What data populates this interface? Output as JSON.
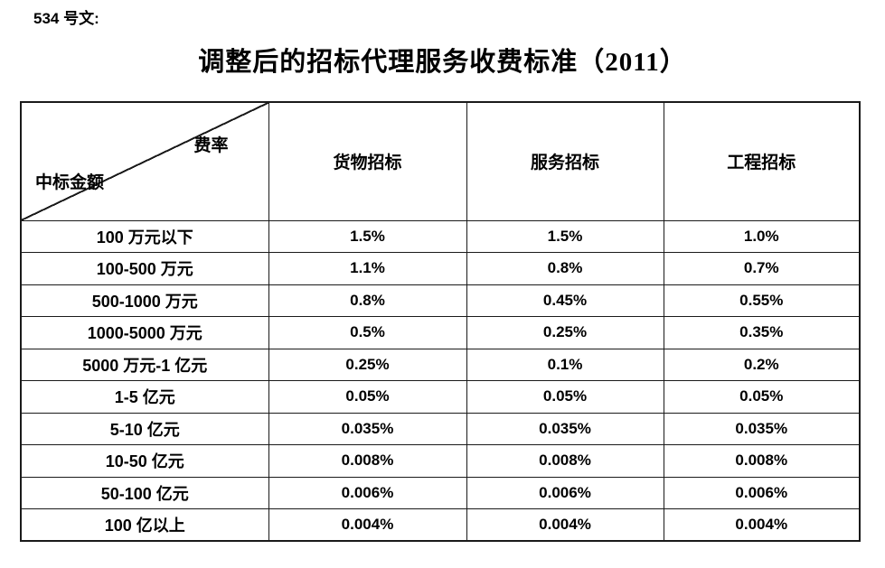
{
  "doc_ref": "534 号文:",
  "title": "调整后的招标代理服务收费标准（2011）",
  "table": {
    "corner": {
      "top_right": "费率",
      "bottom_left": "中标金额"
    },
    "columns": [
      "货物招标",
      "服务招标",
      "工程招标"
    ],
    "rows": [
      {
        "label": "100 万元以下",
        "values": [
          "1.5%",
          "1.5%",
          "1.0%"
        ]
      },
      {
        "label": "100-500 万元",
        "values": [
          "1.1%",
          "0.8%",
          "0.7%"
        ]
      },
      {
        "label": "500-1000 万元",
        "values": [
          "0.8%",
          "0.45%",
          "0.55%"
        ]
      },
      {
        "label": "1000-5000 万元",
        "values": [
          "0.5%",
          "0.25%",
          "0.35%"
        ]
      },
      {
        "label": "5000 万元-1 亿元",
        "values": [
          "0.25%",
          "0.1%",
          "0.2%"
        ]
      },
      {
        "label": "1-5 亿元",
        "values": [
          "0.05%",
          "0.05%",
          "0.05%"
        ]
      },
      {
        "label": "5-10 亿元",
        "values": [
          "0.035%",
          "0.035%",
          "0.035%"
        ]
      },
      {
        "label": "10-50 亿元",
        "values": [
          "0.008%",
          "0.008%",
          "0.008%"
        ]
      },
      {
        "label": "50-100 亿元",
        "values": [
          "0.006%",
          "0.006%",
          "0.006%"
        ]
      },
      {
        "label": "100 亿以上",
        "values": [
          "0.004%",
          "0.004%",
          "0.004%"
        ]
      }
    ]
  },
  "colors": {
    "background": "#ffffff",
    "text": "#000000",
    "border": "#1a1a1a"
  }
}
